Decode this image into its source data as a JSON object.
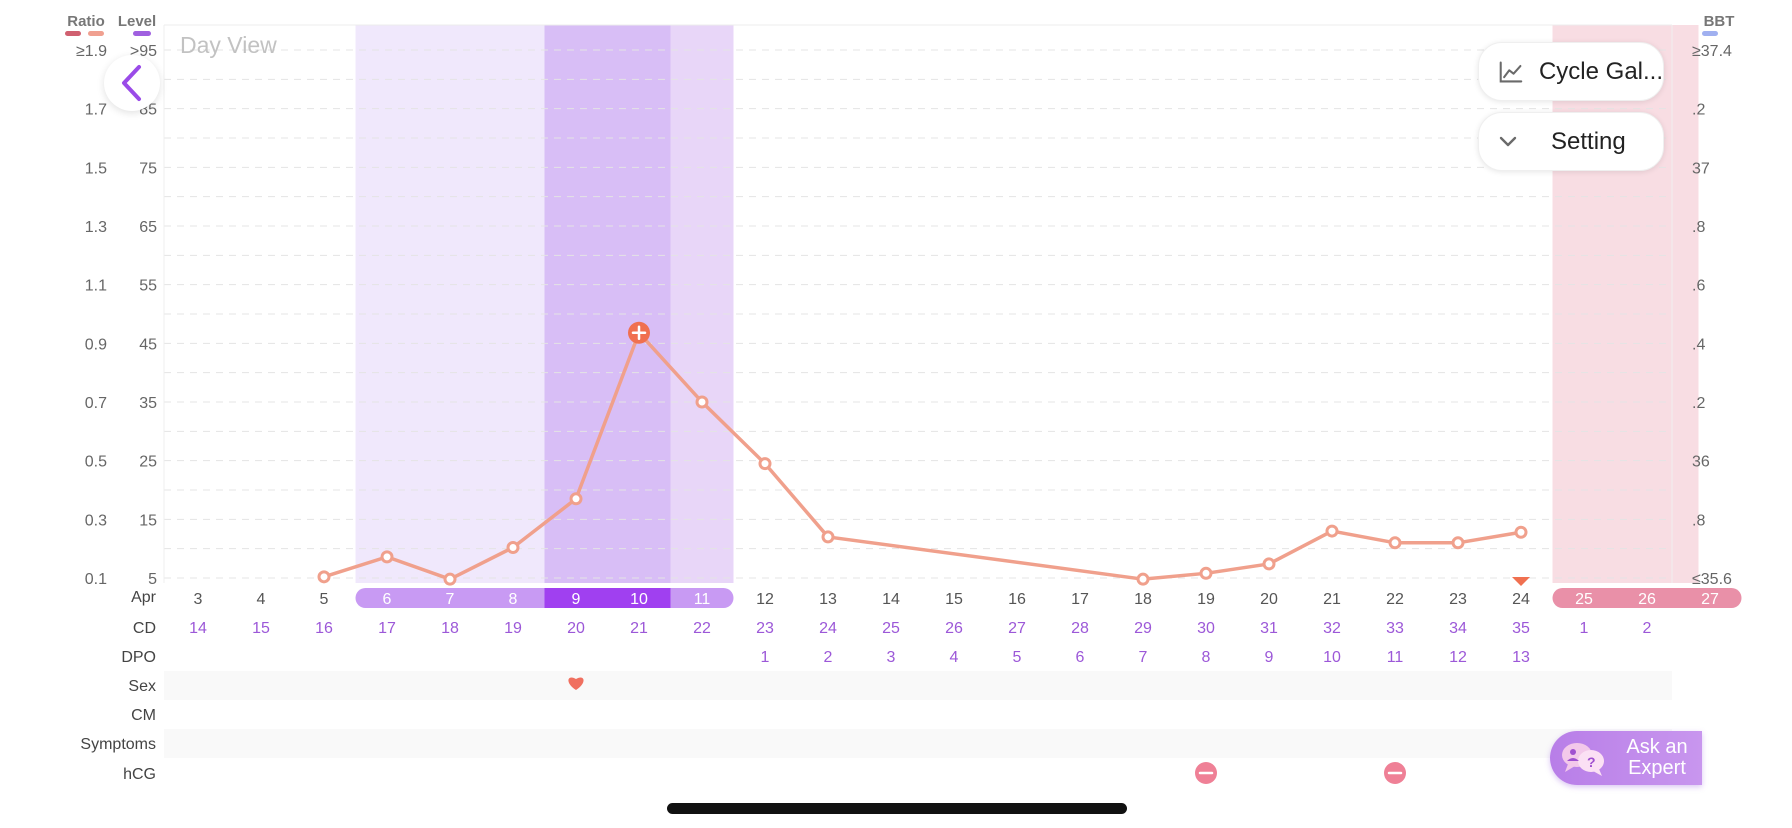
{
  "header": {
    "legend_ratio": "Ratio",
    "legend_level": "Level",
    "legend_bbt": "BBT",
    "day_view": "Day View"
  },
  "colors": {
    "line": "#f0a08c",
    "ratio_swatch_1": "#d06070",
    "ratio_swatch_2": "#f0a090",
    "level_swatch": "#a060e0",
    "bbt_swatch": "#a0b0f0",
    "fertile_light": "#f0e8fc",
    "peak_dark": "#d8bef6",
    "peak_after": "#e8d6f8",
    "period_band": "#f8dde3",
    "period_pill": "#e990a8",
    "fertile_pill": "#c89af3",
    "peak_pill": "#a040f0",
    "cd_text": "#9c58d8",
    "hcg_negative": "#ef8096",
    "heart": "#f07060",
    "marker": "#f07050"
  },
  "buttons": {
    "back_icon": "chevron-left-icon",
    "cycle_label": "Cycle Gal...",
    "cycle_icon": "line-chart-icon",
    "setting_label": "Setting",
    "setting_icon": "chevron-down-icon",
    "ask_label_1": "Ask an",
    "ask_label_2": "Expert",
    "ask_icon": "chat-bubbles-icon"
  },
  "row_labels": {
    "month": "Apr",
    "cd": "CD",
    "dpo": "DPO",
    "sex": "Sex",
    "cm": "CM",
    "symptoms": "Symptoms",
    "hcg": "hCG"
  },
  "chart_data": {
    "type": "line",
    "title": "Day View",
    "xlabel": "Apr",
    "ylabel_left_ratio": "Ratio",
    "ylabel_left_level": "Level",
    "ylabel_right": "BBT",
    "ratio_ticks": [
      "≥1.9",
      "1.7",
      "1.5",
      "1.3",
      "1.1",
      "0.9",
      "0.7",
      "0.5",
      "0.3",
      "0.1"
    ],
    "level_ticks": [
      ">95",
      "85",
      "75",
      "65",
      "55",
      "45",
      "35",
      "25",
      "15",
      "5"
    ],
    "bbt_ticks": [
      "≥37.4",
      ".2",
      "37",
      ".8",
      ".6",
      ".4",
      ".2",
      "36",
      ".8",
      "≤35.6"
    ],
    "level_range": [
      5,
      95
    ],
    "dates": [
      "3",
      "4",
      "5",
      "6",
      "7",
      "8",
      "9",
      "10",
      "11",
      "12",
      "13",
      "14",
      "15",
      "16",
      "17",
      "18",
      "19",
      "20",
      "21",
      "22",
      "23",
      "24",
      "25",
      "26",
      "27"
    ],
    "cd": [
      "14",
      "15",
      "16",
      "17",
      "18",
      "19",
      "20",
      "21",
      "22",
      "23",
      "24",
      "25",
      "26",
      "27",
      "28",
      "29",
      "30",
      "31",
      "32",
      "33",
      "34",
      "35",
      "1",
      "2",
      ""
    ],
    "dpo": [
      "",
      "",
      "",
      "",
      "",
      "",
      "",
      "",
      "",
      "1",
      "2",
      "3",
      "4",
      "5",
      "6",
      "7",
      "8",
      "9",
      "10",
      "11",
      "12",
      "13",
      "",
      "",
      ""
    ],
    "date_types": [
      "normal",
      "normal",
      "normal",
      "fertile",
      "fertile",
      "fertile",
      "peak",
      "peak",
      "fertile",
      "normal",
      "normal",
      "normal",
      "normal",
      "normal",
      "normal",
      "normal",
      "normal",
      "normal",
      "normal",
      "normal",
      "normal",
      "normal",
      "period",
      "period",
      "period"
    ],
    "series": [
      {
        "points": [
          {
            "date": "5",
            "level": 5.2
          },
          {
            "date": "6",
            "level": 8.6
          },
          {
            "date": "7",
            "level": 4.8
          },
          {
            "date": "8",
            "level": 10.2
          },
          {
            "date": "9",
            "level": 18.5
          },
          {
            "date": "10",
            "level": 46.8
          },
          {
            "date": "11",
            "level": 35.0
          },
          {
            "date": "12",
            "level": 24.5
          },
          {
            "date": "13",
            "level": 12.0
          },
          {
            "date": "18",
            "level": 4.8
          },
          {
            "date": "19",
            "level": 5.8
          },
          {
            "date": "20",
            "level": 7.4
          },
          {
            "date": "21",
            "level": 13.0
          },
          {
            "date": "22",
            "level": 11.0
          },
          {
            "date": "23",
            "level": 11.0
          },
          {
            "date": "24",
            "level": 12.8
          }
        ]
      }
    ],
    "highlighted_point": {
      "date": "10",
      "marker": "plus"
    },
    "fertile_band": {
      "from": "6",
      "to": "11"
    },
    "peak_band": {
      "from": "9",
      "to": "10"
    },
    "period_band": {
      "from": "25",
      "to": "26"
    },
    "marker_date": "24",
    "sex_dates": [
      "9"
    ],
    "hcg_negative_dates": [
      "19",
      "22"
    ],
    "grid": true
  }
}
